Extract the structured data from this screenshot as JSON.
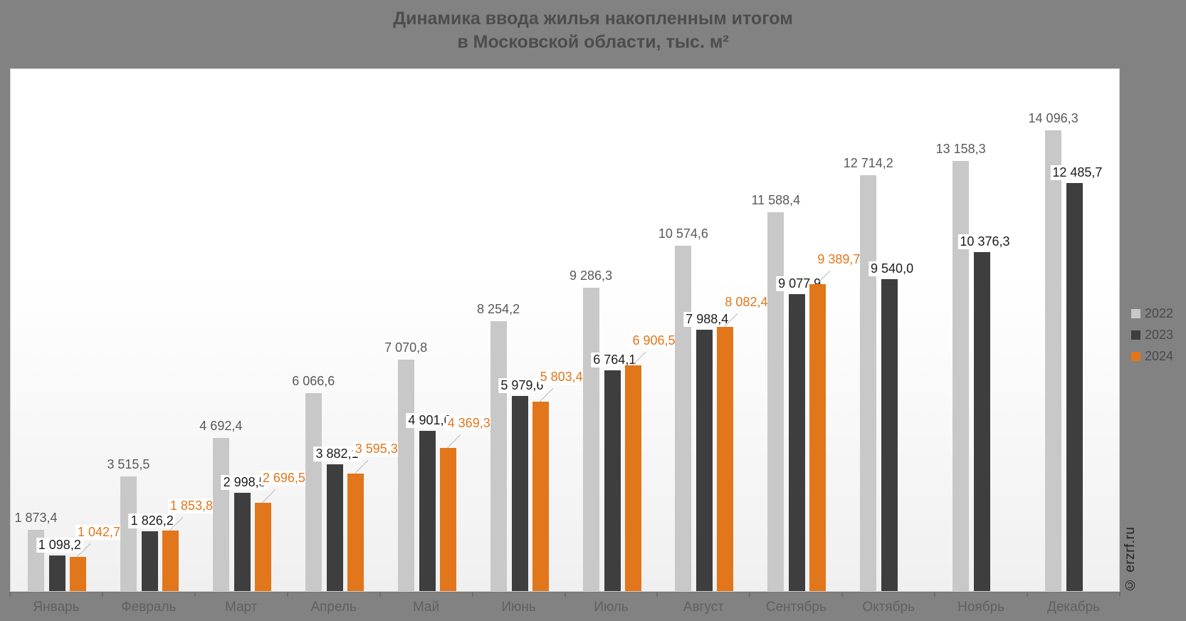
{
  "title": {
    "line1": "Динамика ввода жилья накопленным итогом",
    "line2": "в Московской области, тыс. м²"
  },
  "watermark": "© erzrf.ru",
  "legend": [
    {
      "label": "2022",
      "color": "#c8c8c8"
    },
    {
      "label": "2023",
      "color": "#3e3e3e"
    },
    {
      "label": "2024",
      "color": "#e2761b"
    }
  ],
  "colors": {
    "background": "#828282",
    "plot_background": "#ffffff",
    "series_2022": "#c8c8c8",
    "series_2023": "#3e3e3e",
    "series_2024": "#e2761b"
  },
  "chart_data": {
    "type": "bar",
    "title": "Динамика ввода жилья накопленным итогом в Московской области, тыс. м²",
    "xlabel": "",
    "ylabel": "тыс. м²",
    "ylim": [
      0,
      14800
    ],
    "grid": false,
    "legend_position": "right",
    "categories": [
      "Январь",
      "Февраль",
      "Март",
      "Апрель",
      "Май",
      "Июнь",
      "Июль",
      "Август",
      "Сентябрь",
      "Октябрь",
      "Ноябрь",
      "Декабрь"
    ],
    "series": [
      {
        "name": "2022",
        "color": "#c8c8c8",
        "values": [
          1873.4,
          3515.5,
          4692.4,
          6066.6,
          7070.8,
          8254.2,
          9286.3,
          10574.6,
          11588.4,
          12714.2,
          13158.3,
          14096.3
        ],
        "labels": [
          "1 873,4",
          "3 515,5",
          "4 692,4",
          "6 066,6",
          "7 070,8",
          "8 254,2",
          "9 286,3",
          "10 574,6",
          "11 588,4",
          "12 714,2",
          "13 158,3",
          "14 096,3"
        ]
      },
      {
        "name": "2023",
        "color": "#3e3e3e",
        "values": [
          1098.2,
          1826.2,
          2998.5,
          3882.1,
          4901.6,
          5979.6,
          6764.1,
          7988.4,
          9077.9,
          9540.0,
          10376.3,
          12485.7
        ],
        "labels": [
          "1 098,2",
          "1 826,2",
          "2 998,5",
          "3 882,1",
          "4 901,6",
          "5 979,6",
          "6 764,1",
          "7 988,4",
          "9 077,9",
          "9 540,0",
          "10 376,3",
          "12 485,7"
        ]
      },
      {
        "name": "2024",
        "color": "#e2761b",
        "values": [
          1042.7,
          1853.8,
          2696.5,
          3595.3,
          4369.3,
          5803.4,
          6906.5,
          8082.4,
          9389.7,
          null,
          null,
          null
        ],
        "labels": [
          "1 042,7",
          "1 853,8",
          "2 696,5",
          "3 595,3",
          "4 369,3",
          "5 803,4",
          "6 906,5",
          "8 082,4",
          "9 389,7",
          "",
          "",
          ""
        ]
      }
    ]
  }
}
